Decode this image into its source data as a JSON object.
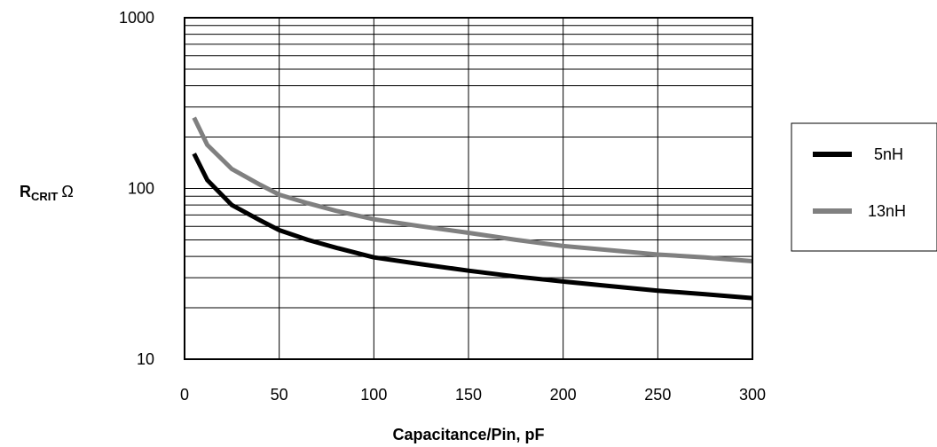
{
  "chart_data": {
    "type": "line",
    "xlabel": "Capacitance/Pin, pF",
    "ylabel": "RCRIT Ω",
    "ylabel_parts": {
      "main": "R",
      "sub": "CRIT",
      "unit": "Ω"
    },
    "xlim": [
      0,
      300
    ],
    "ylim": [
      10,
      1000
    ],
    "yscale": "log",
    "grid": true,
    "legend_position": "right",
    "x_ticks": [
      "0",
      "50",
      "100",
      "150",
      "200",
      "250",
      "300"
    ],
    "y_ticks": [
      "10",
      "100",
      "1000"
    ],
    "series": [
      {
        "name": "5nH",
        "color": "#000000",
        "x": [
          5,
          12,
          25,
          40,
          50,
          65,
          80,
          100,
          125,
          150,
          175,
          200,
          225,
          250,
          275,
          300
        ],
        "y": [
          160,
          112,
          80,
          65,
          57,
          50,
          45,
          39.5,
          36,
          33,
          30.5,
          28.5,
          26.8,
          25.2,
          24,
          22.8
        ]
      },
      {
        "name": "13nH",
        "color": "#808080",
        "x": [
          5,
          12,
          25,
          40,
          50,
          65,
          80,
          100,
          125,
          150,
          175,
          200,
          225,
          250,
          275,
          300
        ],
        "y": [
          260,
          180,
          130,
          105,
          92,
          82,
          74,
          66,
          60,
          55,
          50,
          46,
          43.5,
          41,
          39.5,
          37.5
        ]
      }
    ]
  }
}
